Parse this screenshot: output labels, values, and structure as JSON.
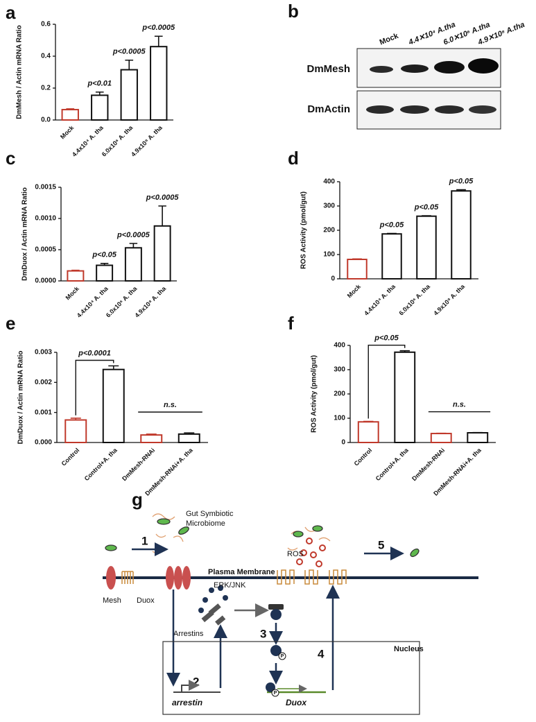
{
  "chart_data": [
    {
      "type": "bar",
      "panel": "a",
      "y_label": "DmMesh / Actin mRNA Ratio",
      "categories": [
        "Mock",
        "4.4x10⁴ A. tha",
        "6.0x10⁶ A. tha",
        "4.9x10⁸ A. tha"
      ],
      "values": [
        0.065,
        0.155,
        0.315,
        0.46
      ],
      "errors": [
        0.005,
        0.02,
        0.06,
        0.065
      ],
      "colors": [
        "#c0392b",
        "#111111",
        "#111111",
        "#111111"
      ],
      "ylim": [
        0,
        0.6
      ],
      "yticks": [
        {
          "value": 0,
          "label": "0.0"
        },
        0.2,
        0.4,
        0.6
      ],
      "annotations": [
        "p<0.01",
        "p<0.0005",
        "p<0.0005"
      ]
    },
    {
      "type": "bar",
      "panel": "c",
      "y_label": "DmDuox / Actin mRNA Ratio",
      "categories": [
        "Mock",
        "4.4x10⁴ A. tha",
        "6.0x10⁶ A. tha",
        "4.9x10⁸ A. tha"
      ],
      "values": [
        0.00016,
        0.00025,
        0.00053,
        0.00088
      ],
      "errors": [
        1e-05,
        3e-05,
        7e-05,
        0.00032
      ],
      "colors": [
        "#c0392b",
        "#111111",
        "#111111",
        "#111111"
      ],
      "ylim": [
        0,
        0.0015
      ],
      "yticks": [
        {
          "value": 0,
          "label": "0.0000"
        },
        {
          "value": 0.0005,
          "label": "0.0005"
        },
        {
          "value": 0.001,
          "label": "0.0010"
        },
        {
          "value": 0.0015,
          "label": "0.0015"
        }
      ],
      "annotations": [
        "p<0.05",
        "p<0.0005",
        "p<0.0005"
      ]
    },
    {
      "type": "bar",
      "panel": "d",
      "y_label": "ROS Activity (pmol/gut)",
      "categories": [
        "Mock",
        "4.4x10⁴ A. tha",
        "6.0x10⁶ A. tha",
        "4.9x10⁸ A. tha"
      ],
      "values": [
        80,
        185,
        258,
        362
      ],
      "errors": [
        2,
        2,
        2,
        5
      ],
      "colors": [
        "#c0392b",
        "#111111",
        "#111111",
        "#111111"
      ],
      "ylim": [
        0,
        400
      ],
      "yticks": [
        0,
        100,
        200,
        300,
        400
      ],
      "annotations": [
        "p<0.05",
        "p<0.05",
        "p<0.05"
      ]
    },
    {
      "type": "bar",
      "panel": "e",
      "y_label": "DmDuox / Actin mRNA Ratio",
      "categories": [
        "Control",
        "Control+A. tha",
        "DmMesh-RNAi",
        "DmMesh-RNAi+A. tha"
      ],
      "values": [
        0.00075,
        0.00243,
        0.00025,
        0.00028
      ],
      "errors": [
        6e-05,
        0.00012,
        3e-05,
        4e-05
      ],
      "colors": [
        "#c0392b",
        "#111111",
        "#c0392b",
        "#111111"
      ],
      "ylim": [
        0,
        0.003
      ],
      "yticks": [
        {
          "value": 0,
          "label": "0.000"
        },
        {
          "value": 0.001,
          "label": "0.001"
        },
        {
          "value": 0.002,
          "label": "0.002"
        },
        {
          "value": 0.003,
          "label": "0.003"
        }
      ],
      "annotations": [
        "p<0.0001",
        "n.s."
      ]
    },
    {
      "type": "bar",
      "panel": "f",
      "y_label": "ROS Activity (pmol/gut)",
      "categories": [
        "Control",
        "Control+A. tha",
        "DmMesh-RNAi",
        "DmMesh-RNAi+A. tha"
      ],
      "values": [
        85,
        372,
        37,
        40
      ],
      "errors": [
        2,
        6,
        1,
        1
      ],
      "colors": [
        "#c0392b",
        "#111111",
        "#c0392b",
        "#111111"
      ],
      "ylim": [
        0,
        400
      ],
      "yticks": [
        0,
        100,
        200,
        300,
        400
      ],
      "annotations": [
        "p<0.05",
        "n.s."
      ]
    }
  ],
  "blot": {
    "panel": "b",
    "lanes": [
      "Mock",
      "4.4✕10⁴ A.tha",
      "6.0✕10⁶ A.tha",
      "4.9✕10⁸ A.tha"
    ],
    "rows": [
      "DmMesh",
      "DmActin"
    ]
  },
  "diagram": {
    "panel": "g",
    "microbiome": [
      "Gut Symbiotic",
      "Microbiome"
    ],
    "steps": [
      "1",
      "2",
      "3",
      "4",
      "5"
    ],
    "ros": "ROS",
    "membrane": "Plasma Membrane",
    "mesh": "Mesh",
    "duox": "Duox",
    "erk": "ERK/JNK",
    "arrestins": "Arrestins",
    "nucleus": "Nucleus",
    "arrestin_gene": "arrestin",
    "duox_gene": "Duox",
    "phospho": "P"
  }
}
